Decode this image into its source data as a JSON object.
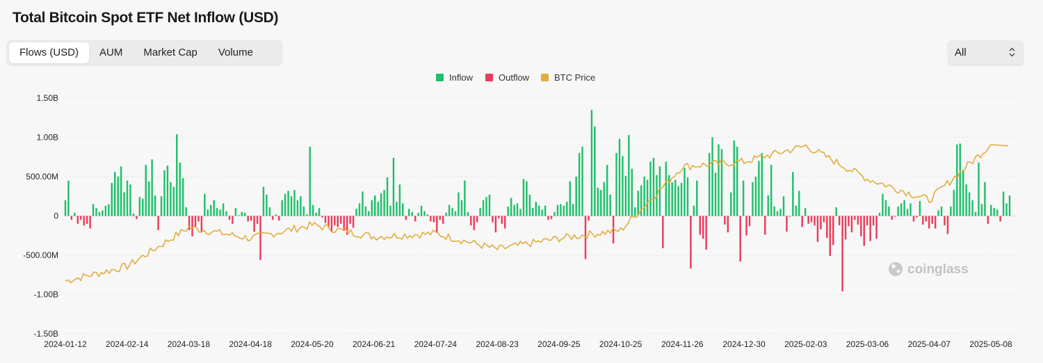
{
  "title": "Total Bitcoin Spot ETF Net Inflow (USD)",
  "tabs": [
    {
      "label": "Flows (USD)",
      "active": true
    },
    {
      "label": "AUM",
      "active": false
    },
    {
      "label": "Market Cap",
      "active": false
    },
    {
      "label": "Volume",
      "active": false
    }
  ],
  "range_select": {
    "value": "All"
  },
  "watermark": "coinglass",
  "colors": {
    "inflow": "#1fbf6b",
    "outflow": "#ea3b5b",
    "price": "#e2ac3e",
    "grid": "#e4e4e4"
  },
  "chart_data": {
    "type": "bar",
    "legend": [
      {
        "name": "Inflow",
        "color": "#1fbf6b"
      },
      {
        "name": "Outflow",
        "color": "#ea3b5b"
      },
      {
        "name": "BTC Price",
        "color": "#e2ac3e"
      }
    ],
    "legend_position": "top-center",
    "grid": true,
    "ylim": [
      -1500000000,
      1500000000
    ],
    "y_ticks": [
      {
        "value": 1500000000,
        "label": "1.50B"
      },
      {
        "value": 1000000000,
        "label": "1.00B"
      },
      {
        "value": 500000000,
        "label": "500.00M"
      },
      {
        "value": 0,
        "label": "0"
      },
      {
        "value": -500000000,
        "label": "-500.00M"
      },
      {
        "value": -1000000000,
        "label": "-1.00B"
      },
      {
        "value": -1500000000,
        "label": "-1.50B"
      }
    ],
    "x_ticks": [
      "2024-01-12",
      "2024-02-14",
      "2024-03-18",
      "2024-04-18",
      "2024-05-20",
      "2024-06-21",
      "2024-07-24",
      "2024-08-23",
      "2024-09-25",
      "2024-10-25",
      "2024-11-26",
      "2024-12-30",
      "2025-02-03",
      "2025-03-06",
      "2025-04-07",
      "2025-05-08"
    ],
    "flows_musd": [
      200,
      450,
      -50,
      40,
      -100,
      -50,
      -120,
      -100,
      -160,
      150,
      100,
      50,
      70,
      130,
      150,
      420,
      560,
      500,
      630,
      300,
      450,
      400,
      30,
      -40,
      240,
      220,
      650,
      440,
      720,
      260,
      -180,
      250,
      580,
      640,
      430,
      370,
      1040,
      680,
      480,
      110,
      -180,
      -260,
      -140,
      -70,
      -210,
      280,
      80,
      140,
      200,
      100,
      80,
      160,
      60,
      -50,
      -100,
      100,
      10,
      50,
      40,
      -70,
      -60,
      -200,
      -100,
      -560,
      370,
      270,
      110,
      -50,
      20,
      -60,
      200,
      280,
      320,
      250,
      330,
      200,
      250,
      120,
      20,
      880,
      140,
      40,
      100,
      -20,
      -90,
      -150,
      -200,
      -120,
      -140,
      -100,
      -190,
      -240,
      -100,
      -150,
      90,
      160,
      310,
      120,
      60,
      200,
      260,
      180,
      290,
      330,
      490,
      130,
      740,
      180,
      400,
      160,
      -50,
      90,
      50,
      -70,
      40,
      130,
      60,
      20,
      -70,
      -80,
      -210,
      -50,
      -100,
      40,
      140,
      100,
      60,
      300,
      200,
      450,
      50,
      -120,
      -180,
      -80,
      100,
      200,
      240,
      270,
      -80,
      -210,
      -30,
      -100,
      -160,
      120,
      230,
      140,
      160,
      90,
      470,
      440,
      270,
      100,
      180,
      130,
      80,
      130,
      -50,
      -40,
      50,
      140,
      150,
      130,
      180,
      440,
      150,
      500,
      800,
      880,
      -550,
      -60,
      1350,
      1140,
      360,
      330,
      430,
      650,
      270,
      -350,
      800,
      980,
      760,
      510,
      1030,
      600,
      110,
      320,
      390,
      500,
      460,
      690,
      740,
      520,
      630,
      -410,
      690,
      520,
      430,
      460,
      380,
      420,
      610,
      490,
      -670,
      130,
      450,
      -240,
      -290,
      -430,
      800,
      1000,
      550,
      910,
      850,
      -110,
      -210,
      300,
      960,
      880,
      -580,
      450,
      -250,
      -130,
      430,
      500,
      700,
      800,
      -240,
      260,
      650,
      120,
      60,
      90,
      250,
      -200,
      -10,
      560,
      130,
      320,
      -140,
      100,
      -100,
      -80,
      -120,
      -330,
      -170,
      -80,
      -280,
      -510,
      -370,
      110,
      -120,
      -960,
      -300,
      -130,
      -210,
      -50,
      -110,
      -260,
      -380,
      -120,
      -320,
      -120,
      -290,
      40,
      280,
      200,
      120,
      -50,
      -10,
      120,
      160,
      200,
      90,
      160,
      -70,
      -20,
      190,
      -110,
      -70,
      -160,
      -100,
      -160,
      70,
      120,
      -120,
      -230,
      120,
      330,
      910,
      920,
      580,
      400,
      300,
      200,
      50,
      680,
      150,
      430,
      -100,
      140,
      100,
      80,
      -70,
      310,
      160,
      260
    ],
    "btc_price_by_xtick": [
      46000,
      52000,
      68000,
      63500,
      69000,
      64200,
      65500,
      59000,
      63500,
      66800,
      93000,
      95000,
      101500,
      88000,
      79300,
      102000
    ],
    "btc_price_note": "secondary axis, no labels shown"
  }
}
